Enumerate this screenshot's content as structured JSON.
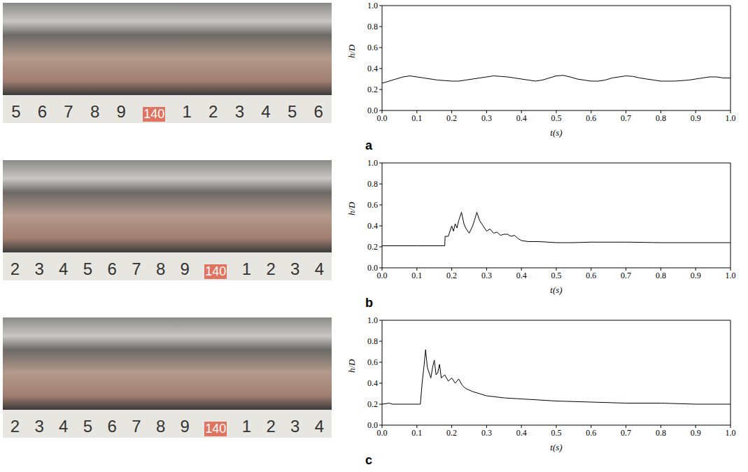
{
  "photos": [
    {
      "panel": "a",
      "ruler_labels": [
        "5",
        "6",
        "7",
        "8",
        "9",
        "140",
        "1",
        "2",
        "3",
        "4",
        "5",
        "6"
      ]
    },
    {
      "panel": "b",
      "ruler_labels": [
        "2",
        "3",
        "4",
        "5",
        "6",
        "7",
        "8",
        "9",
        "140",
        "1",
        "2",
        "3",
        "4"
      ]
    },
    {
      "panel": "c",
      "ruler_labels": [
        "2",
        "3",
        "4",
        "5",
        "6",
        "7",
        "8",
        "9",
        "140",
        "1",
        "2",
        "3",
        "4"
      ]
    }
  ],
  "chart_data": [
    {
      "type": "line",
      "panel": "a",
      "x_label": "t(s)",
      "y_label": "h/D",
      "color": "#000000",
      "x": [
        0,
        0.02,
        0.04,
        0.06,
        0.08,
        0.1,
        0.12,
        0.14,
        0.16,
        0.18,
        0.2,
        0.22,
        0.24,
        0.26,
        0.28,
        0.3,
        0.32,
        0.34,
        0.36,
        0.38,
        0.4,
        0.42,
        0.44,
        0.46,
        0.48,
        0.5,
        0.52,
        0.54,
        0.56,
        0.58,
        0.6,
        0.62,
        0.64,
        0.66,
        0.68,
        0.7,
        0.72,
        0.74,
        0.76,
        0.78,
        0.8,
        0.82,
        0.84,
        0.86,
        0.88,
        0.9,
        0.92,
        0.94,
        0.96,
        0.98,
        1.0
      ],
      "values": [
        0.26,
        0.28,
        0.3,
        0.32,
        0.33,
        0.32,
        0.31,
        0.3,
        0.29,
        0.285,
        0.28,
        0.28,
        0.29,
        0.3,
        0.31,
        0.32,
        0.33,
        0.325,
        0.32,
        0.31,
        0.3,
        0.29,
        0.28,
        0.29,
        0.31,
        0.33,
        0.335,
        0.32,
        0.3,
        0.29,
        0.28,
        0.28,
        0.29,
        0.31,
        0.32,
        0.33,
        0.325,
        0.31,
        0.3,
        0.29,
        0.28,
        0.28,
        0.28,
        0.285,
        0.29,
        0.3,
        0.31,
        0.32,
        0.32,
        0.31,
        0.31
      ],
      "xlim": [
        0,
        1
      ],
      "ylim": [
        0,
        1
      ],
      "xticks": [
        {
          "value": 0,
          "label": "0.0"
        },
        {
          "value": 0.1,
          "label": "0.1"
        },
        {
          "value": 0.2,
          "label": "0.2"
        },
        {
          "value": 0.3,
          "label": "0.3"
        },
        {
          "value": 0.4,
          "label": "0.4"
        },
        {
          "value": 0.5,
          "label": "0.5"
        },
        {
          "value": 0.6,
          "label": "0.6"
        },
        {
          "value": 0.7,
          "label": "0.7"
        },
        {
          "value": 0.8,
          "label": "0.8"
        },
        {
          "value": 0.9,
          "label": "0.9"
        },
        {
          "value": 1,
          "label": "1.0"
        }
      ],
      "yticks": [
        {
          "value": 0,
          "label": "0.0"
        },
        {
          "value": 0.2,
          "label": "0.2"
        },
        {
          "value": 0.4,
          "label": "0.4"
        },
        {
          "value": 0.6,
          "label": "0.6"
        },
        {
          "value": 0.8,
          "label": "0.8"
        },
        {
          "value": 1,
          "label": "1.0"
        }
      ]
    },
    {
      "type": "line",
      "panel": "b",
      "x_label": "t(s)",
      "y_label": "h/D",
      "color": "#000000",
      "x": [
        0,
        0.1,
        0.18,
        0.181,
        0.19,
        0.2,
        0.205,
        0.21,
        0.215,
        0.22,
        0.228,
        0.235,
        0.24,
        0.25,
        0.26,
        0.265,
        0.272,
        0.28,
        0.29,
        0.3,
        0.31,
        0.32,
        0.33,
        0.34,
        0.35,
        0.36,
        0.37,
        0.38,
        0.39,
        0.4,
        0.42,
        0.45,
        0.5,
        0.55,
        0.6,
        0.7,
        0.8,
        0.9,
        1.0
      ],
      "values": [
        0.21,
        0.21,
        0.21,
        0.3,
        0.3,
        0.4,
        0.35,
        0.42,
        0.38,
        0.45,
        0.53,
        0.42,
        0.38,
        0.33,
        0.4,
        0.45,
        0.53,
        0.45,
        0.4,
        0.35,
        0.37,
        0.33,
        0.34,
        0.31,
        0.32,
        0.32,
        0.3,
        0.31,
        0.28,
        0.26,
        0.25,
        0.25,
        0.24,
        0.24,
        0.245,
        0.245,
        0.24,
        0.24,
        0.24
      ],
      "xlim": [
        0,
        1
      ],
      "ylim": [
        0,
        1
      ],
      "xticks": [
        {
          "value": 0,
          "label": "0.0"
        },
        {
          "value": 0.1,
          "label": "0.1"
        },
        {
          "value": 0.2,
          "label": "0.2"
        },
        {
          "value": 0.3,
          "label": "0.3"
        },
        {
          "value": 0.4,
          "label": "0.4"
        },
        {
          "value": 0.5,
          "label": "0.5"
        },
        {
          "value": 0.6,
          "label": "0.6"
        },
        {
          "value": 0.7,
          "label": "0.7"
        },
        {
          "value": 0.8,
          "label": "0.8"
        },
        {
          "value": 0.9,
          "label": "0.9"
        },
        {
          "value": 1,
          "label": "1.0"
        }
      ],
      "yticks": [
        {
          "value": 0,
          "label": "0.0"
        },
        {
          "value": 0.2,
          "label": "0.2"
        },
        {
          "value": 0.4,
          "label": "0.4"
        },
        {
          "value": 0.6,
          "label": "0.6"
        },
        {
          "value": 0.8,
          "label": "0.8"
        },
        {
          "value": 1,
          "label": "1.0"
        }
      ]
    },
    {
      "type": "line",
      "panel": "c",
      "x_label": "t(s)",
      "y_label": "h/D",
      "color": "#000000",
      "x": [
        0,
        0.02,
        0.03,
        0.05,
        0.08,
        0.11,
        0.115,
        0.12,
        0.125,
        0.13,
        0.135,
        0.14,
        0.145,
        0.15,
        0.155,
        0.16,
        0.165,
        0.17,
        0.18,
        0.19,
        0.2,
        0.21,
        0.22,
        0.23,
        0.24,
        0.26,
        0.28,
        0.3,
        0.35,
        0.4,
        0.5,
        0.6,
        0.7,
        0.8,
        0.9,
        1.0
      ],
      "values": [
        0.2,
        0.21,
        0.2,
        0.2,
        0.2,
        0.2,
        0.4,
        0.55,
        0.72,
        0.55,
        0.5,
        0.45,
        0.55,
        0.62,
        0.48,
        0.5,
        0.58,
        0.45,
        0.48,
        0.42,
        0.45,
        0.4,
        0.44,
        0.38,
        0.35,
        0.32,
        0.3,
        0.28,
        0.26,
        0.25,
        0.23,
        0.22,
        0.21,
        0.21,
        0.2,
        0.2
      ],
      "xlim": [
        0,
        1
      ],
      "ylim": [
        0,
        1
      ],
      "xticks": [
        {
          "value": 0,
          "label": "0.0"
        },
        {
          "value": 0.1,
          "label": "0.1"
        },
        {
          "value": 0.2,
          "label": "0.2"
        },
        {
          "value": 0.3,
          "label": "0.3"
        },
        {
          "value": 0.4,
          "label": "0.4"
        },
        {
          "value": 0.5,
          "label": "0.5"
        },
        {
          "value": 0.6,
          "label": "0.6"
        },
        {
          "value": 0.7,
          "label": "0.7"
        },
        {
          "value": 0.8,
          "label": "0.8"
        },
        {
          "value": 0.9,
          "label": "0.9"
        },
        {
          "value": 1,
          "label": "1.0"
        }
      ],
      "yticks": [
        {
          "value": 0,
          "label": "0.0"
        },
        {
          "value": 0.2,
          "label": "0.2"
        },
        {
          "value": 0.4,
          "label": "0.4"
        },
        {
          "value": 0.6,
          "label": "0.6"
        },
        {
          "value": 0.8,
          "label": "0.8"
        },
        {
          "value": 1,
          "label": "1.0"
        }
      ]
    }
  ]
}
